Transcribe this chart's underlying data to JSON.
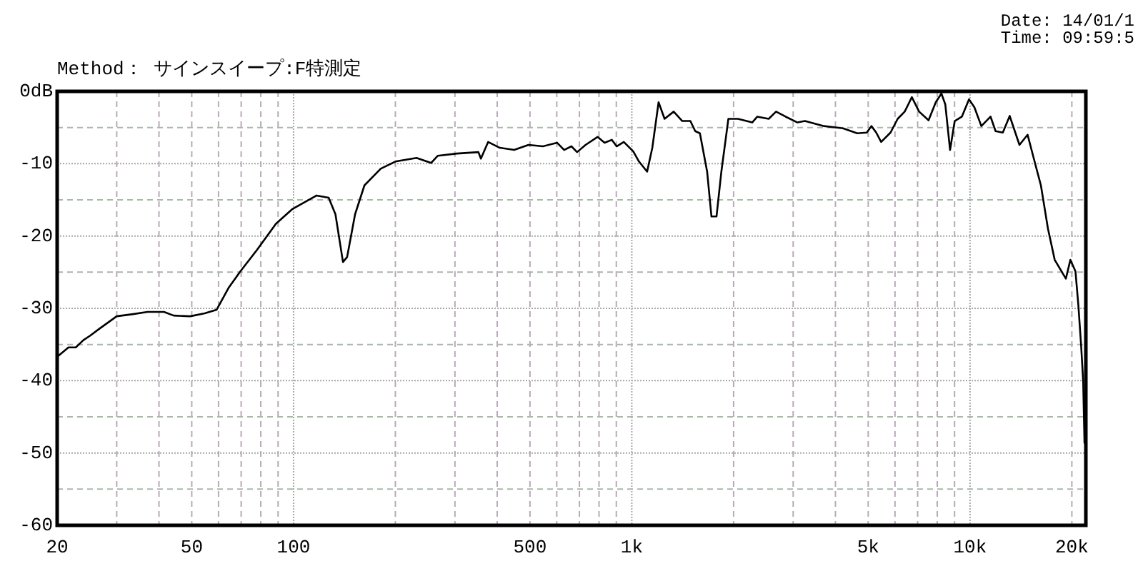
{
  "chart_data": {
    "type": "line",
    "title": "Method： サインスイープ:F特測定",
    "annotations": [
      "Date: 14/01/1",
      "Time: 09:59:5"
    ],
    "log": "x",
    "grid": true,
    "xlim": [
      20,
      22000
    ],
    "ylim": [
      -60,
      0
    ],
    "xticks": [
      20,
      {
        "value": 30,
        "label": null
      },
      {
        "value": 40,
        "label": null
      },
      50,
      {
        "value": 60,
        "label": null
      },
      {
        "value": 70,
        "label": null
      },
      {
        "value": 80,
        "label": null
      },
      {
        "value": 90,
        "label": null
      },
      100,
      {
        "value": 200,
        "label": null
      },
      {
        "value": 300,
        "label": null
      },
      {
        "value": 400,
        "label": null
      },
      500,
      {
        "value": 600,
        "label": null
      },
      {
        "value": 700,
        "label": null
      },
      {
        "value": 800,
        "label": null
      },
      {
        "value": 900,
        "label": null
      },
      {
        "value": 1000,
        "label": "1k"
      },
      {
        "value": 2000,
        "label": null
      },
      {
        "value": 3000,
        "label": null
      },
      {
        "value": 4000,
        "label": null
      },
      {
        "value": 5000,
        "label": "5k"
      },
      {
        "value": 6000,
        "label": null
      },
      {
        "value": 7000,
        "label": null
      },
      {
        "value": 8000,
        "label": null
      },
      {
        "value": 9000,
        "label": null
      },
      {
        "value": 10000,
        "label": "10k"
      },
      {
        "value": 20000,
        "label": "20k"
      }
    ],
    "yticks": [
      {
        "value": 0,
        "label": "0dB"
      },
      {
        "value": -5,
        "label": null
      },
      -10,
      {
        "value": -15,
        "label": null
      },
      -20,
      {
        "value": -25,
        "label": null
      },
      -30,
      {
        "value": -35,
        "label": null
      },
      -40,
      {
        "value": -45,
        "label": null
      },
      -50,
      {
        "value": -55,
        "label": null
      },
      -60
    ],
    "x": [
      20,
      21.6,
      22.7,
      23.9,
      25.0,
      26.7,
      30.0,
      33.5,
      37.0,
      41.4,
      44.2,
      49.5,
      54.6,
      59.2,
      64.2,
      69.6,
      78.0,
      88.7,
      99,
      117,
      127,
      133,
      140,
      144,
      152,
      162,
      181,
      200,
      231,
      255,
      267,
      304,
      352,
      358,
      376,
      407,
      449,
      495,
      546,
      601,
      631,
      663,
      689,
      730,
      792,
      831,
      873,
      902,
      947,
      1010,
      1050,
      1110,
      1150,
      1200,
      1250,
      1330,
      1410,
      1490,
      1540,
      1590,
      1670,
      1720,
      1780,
      1840,
      1930,
      2060,
      2270,
      2350,
      2540,
      2670,
      2850,
      3090,
      3250,
      3700,
      4210,
      4640,
      4950,
      5110,
      5280,
      5460,
      5820,
      6110,
      6410,
      6730,
      7070,
      7540,
      7920,
      8230,
      8450,
      8730,
      9010,
      9460,
      9930,
      10300,
      10800,
      11500,
      11900,
      12500,
      13100,
      14000,
      14800,
      15400,
      16200,
      17000,
      17800,
      19200,
      19800,
      20500,
      20900,
      21300,
      21600,
      21800
    ],
    "series": [
      {
        "color": "#000000",
        "values": [
          -36.7,
          -35.4,
          -35.4,
          -34.4,
          -33.8,
          -32.8,
          -31.1,
          -30.8,
          -30.5,
          -30.5,
          -31.0,
          -31.1,
          -30.7,
          -30.2,
          -27.2,
          -24.9,
          -21.9,
          -18.3,
          -16.3,
          -14.4,
          -14.7,
          -17.0,
          -23.6,
          -22.9,
          -17.0,
          -13.0,
          -10.7,
          -9.7,
          -9.2,
          -9.9,
          -8.9,
          -8.6,
          -8.4,
          -9.3,
          -7.0,
          -7.8,
          -8.1,
          -7.4,
          -7.6,
          -7.1,
          -8.1,
          -7.6,
          -8.4,
          -7.4,
          -6.3,
          -7.1,
          -6.7,
          -7.6,
          -7.0,
          -8.3,
          -9.7,
          -11.1,
          -7.8,
          -1.5,
          -3.8,
          -2.8,
          -4.1,
          -4.1,
          -5.5,
          -5.8,
          -11.1,
          -17.3,
          -17.3,
          -11.1,
          -3.8,
          -3.8,
          -4.3,
          -3.5,
          -3.8,
          -2.8,
          -3.5,
          -4.3,
          -4.1,
          -4.8,
          -5.1,
          -5.8,
          -5.7,
          -4.8,
          -5.7,
          -7.0,
          -5.7,
          -3.8,
          -2.8,
          -0.8,
          -2.8,
          -4.0,
          -1.5,
          -0.3,
          -1.8,
          -8.1,
          -4.1,
          -3.5,
          -1.1,
          -2.2,
          -4.8,
          -3.5,
          -5.5,
          -5.7,
          -3.4,
          -7.4,
          -6.0,
          -9.1,
          -13.0,
          -19.0,
          -23.3,
          -25.9,
          -23.3,
          -24.9,
          -29.5,
          -35.1,
          -40.0,
          -48.6
        ]
      }
    ]
  }
}
